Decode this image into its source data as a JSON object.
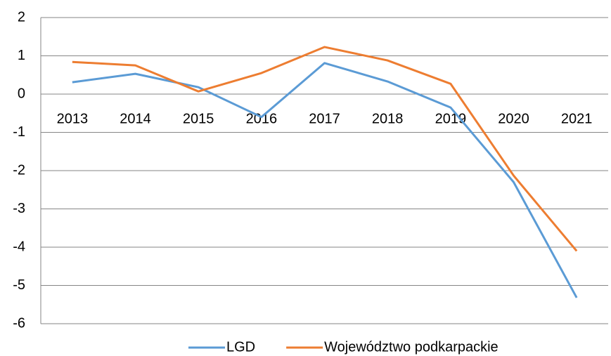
{
  "chart_data": {
    "type": "line",
    "categories": [
      "2013",
      "2014",
      "2015",
      "2016",
      "2017",
      "2018",
      "2019",
      "2020",
      "2021"
    ],
    "series": [
      {
        "name": "LGD",
        "color": "#5b9bd5",
        "values": [
          0.31,
          0.53,
          0.18,
          -0.6,
          0.81,
          0.33,
          -0.35,
          -2.3,
          -5.32
        ]
      },
      {
        "name": "Województwo podkarpackie",
        "color": "#ed7d31",
        "values": [
          0.84,
          0.75,
          0.07,
          0.55,
          1.23,
          0.88,
          0.27,
          -2.13,
          -4.1
        ]
      }
    ],
    "ylim": [
      -6,
      2
    ],
    "yticks": [
      -6,
      -5,
      -4,
      -3,
      -2,
      -1,
      0,
      1,
      2
    ],
    "grid": true,
    "legend": "bottom"
  }
}
